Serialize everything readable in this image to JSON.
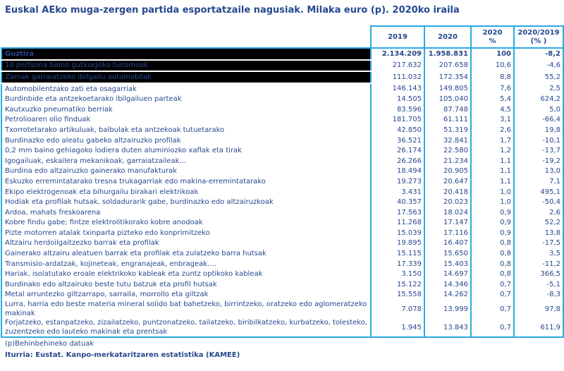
{
  "title": "Euskal AEko muga-zergen partida esportatzaile nagusiak. Milaka euro (p). 2020ko iraila",
  "footnote": "(p)Behinbehineko datuak",
  "source": "Iturria: Eustat. Kanpo-merkataritzaren estatistika (KAMEE)",
  "colors": {
    "border": "#29abe2",
    "text": "#26488e",
    "title": "#26488e",
    "highlight_bg": "#000000",
    "highlight_separator": "#ffffff"
  },
  "table": {
    "columns": [
      "2019",
      "2020",
      "2020\n%",
      "2020/2019\n(% )"
    ],
    "rows": [
      {
        "label": "Guztira",
        "v2019": "2.134.209",
        "v2020": "1.958.831",
        "share": "100",
        "change": "-8,2",
        "style": "total"
      },
      {
        "label": "10 pertsona baino gutxiagoko turismoak",
        "v2019": "217.632",
        "v2020": "207.658",
        "share": "10,6",
        "change": "-4,6",
        "style": "hl"
      },
      {
        "label": "Zamak garraiatzeko ibilgailu automobilak",
        "v2019": "111.032",
        "v2020": "172.354",
        "share": "8,8",
        "change": "55,2",
        "style": "hl"
      },
      {
        "label": "Automobilentzako zati eta osagarriak",
        "v2019": "146.143",
        "v2020": "149.805",
        "share": "7,6",
        "change": "2,5",
        "style": ""
      },
      {
        "label": "Burdinbide eta antzekoetarako ibilgailuen parteak",
        "v2019": "14.505",
        "v2020": "105.040",
        "share": "5,4",
        "change": "624,2",
        "style": ""
      },
      {
        "label": "Kautxuzko pneumatiko berriak",
        "v2019": "83.596",
        "v2020": "87.748",
        "share": "4,5",
        "change": "5,0",
        "style": ""
      },
      {
        "label": "Petrolioaren olio finduak",
        "v2019": "181.705",
        "v2020": "61.111",
        "share": "3,1",
        "change": "-66,4",
        "style": ""
      },
      {
        "label": "Txorrotetarako artikuluak, balbulak eta antzekoak tutuetarako",
        "v2019": "42.850",
        "v2020": "51.319",
        "share": "2,6",
        "change": "19,8",
        "style": ""
      },
      {
        "label": "Burdinazko edo aleatu gabeko altzairuzko profilak",
        "v2019": "36.521",
        "v2020": "32.841",
        "share": "1,7",
        "change": "-10,1",
        "style": ""
      },
      {
        "label": "0,2 mm baino gehiagoko lodiera duten aluminiozko xaflak eta tirak",
        "v2019": "26.174",
        "v2020": "22.580",
        "share": "1,2",
        "change": "-13,7",
        "style": ""
      },
      {
        "label": "Igogailuak, eskailera mekanikoak, garraiatzaileak...",
        "v2019": "26.266",
        "v2020": "21.234",
        "share": "1,1",
        "change": "-19,2",
        "style": ""
      },
      {
        "label": "Burdina edo altzairuzko gainerako manufakturak",
        "v2019": "18.494",
        "v2020": "20.905",
        "share": "1,1",
        "change": "13,0",
        "style": ""
      },
      {
        "label": "Eskuzko erremintatarako tresna trukagarriak edo  makina-erremintatarako",
        "v2019": "19.273",
        "v2020": "20.647",
        "share": "1,1",
        "change": "7,1",
        "style": ""
      },
      {
        "label": "Ekipo elektrogenoak eta bihurgailu birakari elektrikoak",
        "v2019": "3.431",
        "v2020": "20.418",
        "share": "1,0",
        "change": "495,1",
        "style": ""
      },
      {
        "label": "Hodiak eta profilak hutsak, soldadurarik gabe, burdinazko edo altzairuzkoak",
        "v2019": "40.357",
        "v2020": "20.023",
        "share": "1,0",
        "change": "-50,4",
        "style": ""
      },
      {
        "label": "Ardoa, mahats freskoarena",
        "v2019": "17.563",
        "v2020": "18.024",
        "share": "0,9",
        "change": "2,6",
        "style": ""
      },
      {
        "label": "Kobre findu gabe; fintze elektrolitikorako kobre anodoak",
        "v2019": "11.268",
        "v2020": "17.147",
        "share": "0,9",
        "change": "52,2",
        "style": ""
      },
      {
        "label": "Pizte motorren atalak txinparta pizteko edo konprimitzeko",
        "v2019": "15.039",
        "v2020": "17.116",
        "share": "0,9",
        "change": "13,8",
        "style": ""
      },
      {
        "label": "Altzairu herdoilgaitzezko barrak eta profilak",
        "v2019": "19.895",
        "v2020": "16.407",
        "share": "0,8",
        "change": "-17,5",
        "style": ""
      },
      {
        "label": "Gainerako altzairu aleatuen barrak eta profilak eta zulatzeko barra hutsak",
        "v2019": "15.115",
        "v2020": "15.650",
        "share": "0,8",
        "change": "3,5",
        "style": ""
      },
      {
        "label": "Transmisio-ardatzak, kojineteak, engranajeak, enbrageak....",
        "v2019": "17.339",
        "v2020": "15.403",
        "share": "0,8",
        "change": "-11,2",
        "style": ""
      },
      {
        "label": "Hariak, isolatutako eroale elektrikoko kableak eta zuntz optikoko kableak",
        "v2019": "3.150",
        "v2020": "14.697",
        "share": "0,8",
        "change": "366,5",
        "style": ""
      },
      {
        "label": "Burdinako edo altzairuko beste tutu batzuk eta profil hutsak",
        "v2019": "15.122",
        "v2020": "14.346",
        "share": "0,7",
        "change": "-5,1",
        "style": ""
      },
      {
        "label": "Metal arruntezko giltzarrapo, sarraila, morrollo eta giltzak",
        "v2019": "15.558",
        "v2020": "14.262",
        "share": "0,7",
        "change": "-8,3",
        "style": ""
      },
      {
        "label": "Lurra, harria edo beste materia mineral solido bat bahetzeko, birrintzeko, oratzeko edo aglomeratzeko makinak",
        "v2019": "7.078",
        "v2020": "13.999",
        "share": "0,7",
        "change": "97,8",
        "style": "tall"
      },
      {
        "label": "Forjatzeko, estanpatzeko, zizailatzeko, puntzonatzeko, tailatzeko, biribilkatzeko, kurbatzeko, tolesteko, zuzentzeko edo lauteko makinak eta prentsak",
        "v2019": "1.945",
        "v2020": "13.843",
        "share": "0,7",
        "change": "611,9",
        "style": "tall"
      }
    ]
  }
}
